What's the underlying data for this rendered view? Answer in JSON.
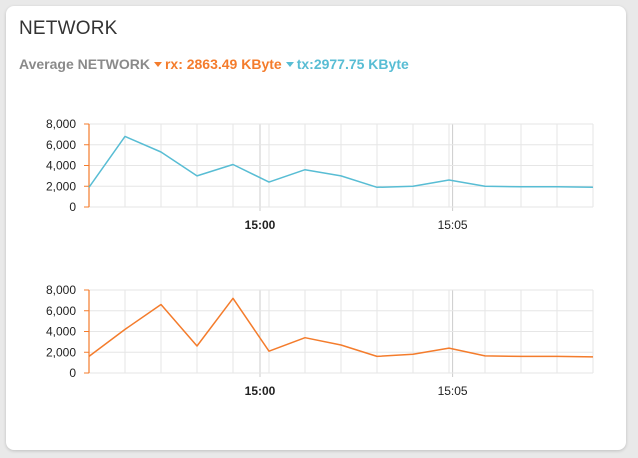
{
  "card": {
    "title": "NETWORK",
    "summary": {
      "avg_label": "Average NETWORK",
      "rx_text": "rx: 2863.49 KByte",
      "tx_text": "tx:2977.75 KByte"
    }
  },
  "colors": {
    "rx": "#f47c2c",
    "tx": "#58bdd4",
    "grid": "#e6e6e6",
    "axis": "#f47c2c"
  },
  "chart_data": [
    {
      "type": "line",
      "series": [
        {
          "values": [
            1900,
            6800,
            5300,
            3000,
            4100,
            2400,
            3600,
            3000,
            1900,
            2000,
            2600,
            2000,
            1950,
            1950,
            1900
          ]
        }
      ],
      "x_ticks": [
        {
          "label": "15:00",
          "bold": true,
          "index": 4.75
        },
        {
          "label": "15:05",
          "bold": false,
          "index": 10.1
        }
      ],
      "y_ticks": [
        "0",
        "2,000",
        "4,000",
        "6,000",
        "8,000"
      ],
      "y_tick_values": [
        0,
        2000,
        4000,
        6000,
        8000
      ],
      "ylim": [
        0,
        8000
      ],
      "grid": true
    },
    {
      "type": "line",
      "series": [
        {
          "values": [
            1600,
            4200,
            6600,
            2600,
            7200,
            2100,
            3400,
            2700,
            1600,
            1800,
            2400,
            1650,
            1600,
            1600,
            1550
          ]
        }
      ],
      "x_ticks": [
        {
          "label": "15:00",
          "bold": true,
          "index": 4.75
        },
        {
          "label": "15:05",
          "bold": false,
          "index": 10.1
        }
      ],
      "y_ticks": [
        "0",
        "2,000",
        "4,000",
        "6,000",
        "8,000"
      ],
      "y_tick_values": [
        0,
        2000,
        4000,
        6000,
        8000
      ],
      "ylim": [
        0,
        8000
      ],
      "grid": true
    }
  ]
}
